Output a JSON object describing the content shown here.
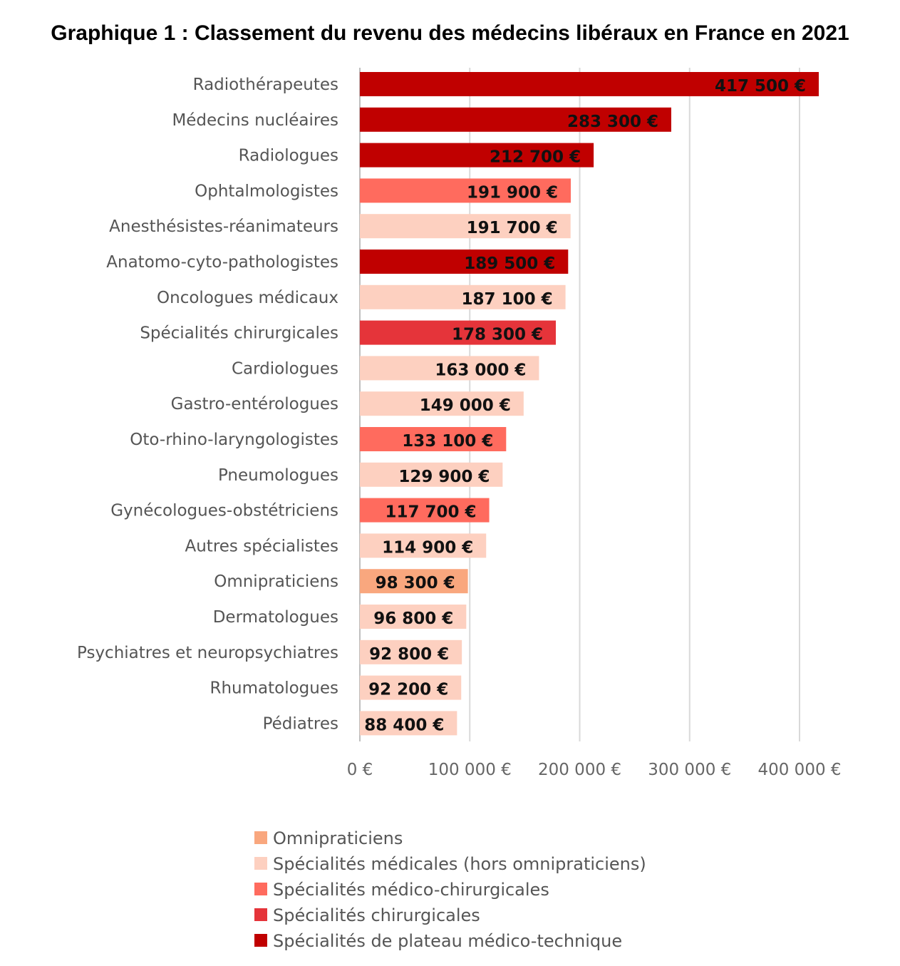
{
  "chart_data": {
    "type": "bar",
    "orientation": "horizontal",
    "title": "Graphique 1 : Classement du revenu des médecins libéraux en France en 2021",
    "xlim": [
      0,
      420000
    ],
    "x_ticks": [
      0,
      100000,
      200000,
      300000,
      400000
    ],
    "x_tick_labels": [
      "0 €",
      "100 000 €",
      "200 000 €",
      "300 000 €",
      "400 000 €"
    ],
    "grid": "vertical",
    "legend_position": "bottom",
    "groups": [
      {
        "name": "Omnipraticiens",
        "color": "#f9a77e"
      },
      {
        "name": "Spécialités médicales (hors omnipraticiens)",
        "color": "#fdd0c0"
      },
      {
        "name": "Spécialités médico-chirurgicales",
        "color": "#ff6b5e"
      },
      {
        "name": "Spécialités chirurgicales",
        "color": "#e5343a"
      },
      {
        "name": "Spécialités de plateau médico-technique",
        "color": "#c00000"
      }
    ],
    "bars": [
      {
        "category": "Radiothérapeutes",
        "value": 417500,
        "label": "417 500 €",
        "group": 4
      },
      {
        "category": "Médecins nucléaires",
        "value": 283300,
        "label": "283 300 €",
        "group": 4
      },
      {
        "category": "Radiologues",
        "value": 212700,
        "label": "212 700 €",
        "group": 4
      },
      {
        "category": "Ophtalmologistes",
        "value": 191900,
        "label": "191 900 €",
        "group": 2
      },
      {
        "category": "Anesthésistes-réanimateurs",
        "value": 191700,
        "label": "191 700 €",
        "group": 1
      },
      {
        "category": "Anatomo-cyto-pathologistes",
        "value": 189500,
        "label": "189 500 €",
        "group": 4
      },
      {
        "category": "Oncologues médicaux",
        "value": 187100,
        "label": "187 100 €",
        "group": 1
      },
      {
        "category": "Spécialités chirurgicales",
        "value": 178300,
        "label": "178 300 €",
        "group": 3
      },
      {
        "category": "Cardiologues",
        "value": 163000,
        "label": "163 000 €",
        "group": 1
      },
      {
        "category": "Gastro-entérologues",
        "value": 149000,
        "label": "149 000 €",
        "group": 1
      },
      {
        "category": "Oto-rhino-laryngologistes",
        "value": 133100,
        "label": "133 100 €",
        "group": 2
      },
      {
        "category": "Pneumologues",
        "value": 129900,
        "label": "129 900 €",
        "group": 1
      },
      {
        "category": "Gynécologues-obstétriciens",
        "value": 117700,
        "label": "117 700 €",
        "group": 2
      },
      {
        "category": "Autres spécialistes",
        "value": 114900,
        "label": "114 900 €",
        "group": 1
      },
      {
        "category": "Omnipraticiens",
        "value": 98300,
        "label": "98 300 €",
        "group": 0
      },
      {
        "category": "Dermatologues",
        "value": 96800,
        "label": "96 800 €",
        "group": 1
      },
      {
        "category": "Psychiatres et neuropsychiatres",
        "value": 92800,
        "label": "92 800 €",
        "group": 1
      },
      {
        "category": "Rhumatologues",
        "value": 92200,
        "label": "92 200 €",
        "group": 1
      },
      {
        "category": "Pédiatres",
        "value": 88400,
        "label": "88 400 €",
        "group": 1
      }
    ]
  }
}
